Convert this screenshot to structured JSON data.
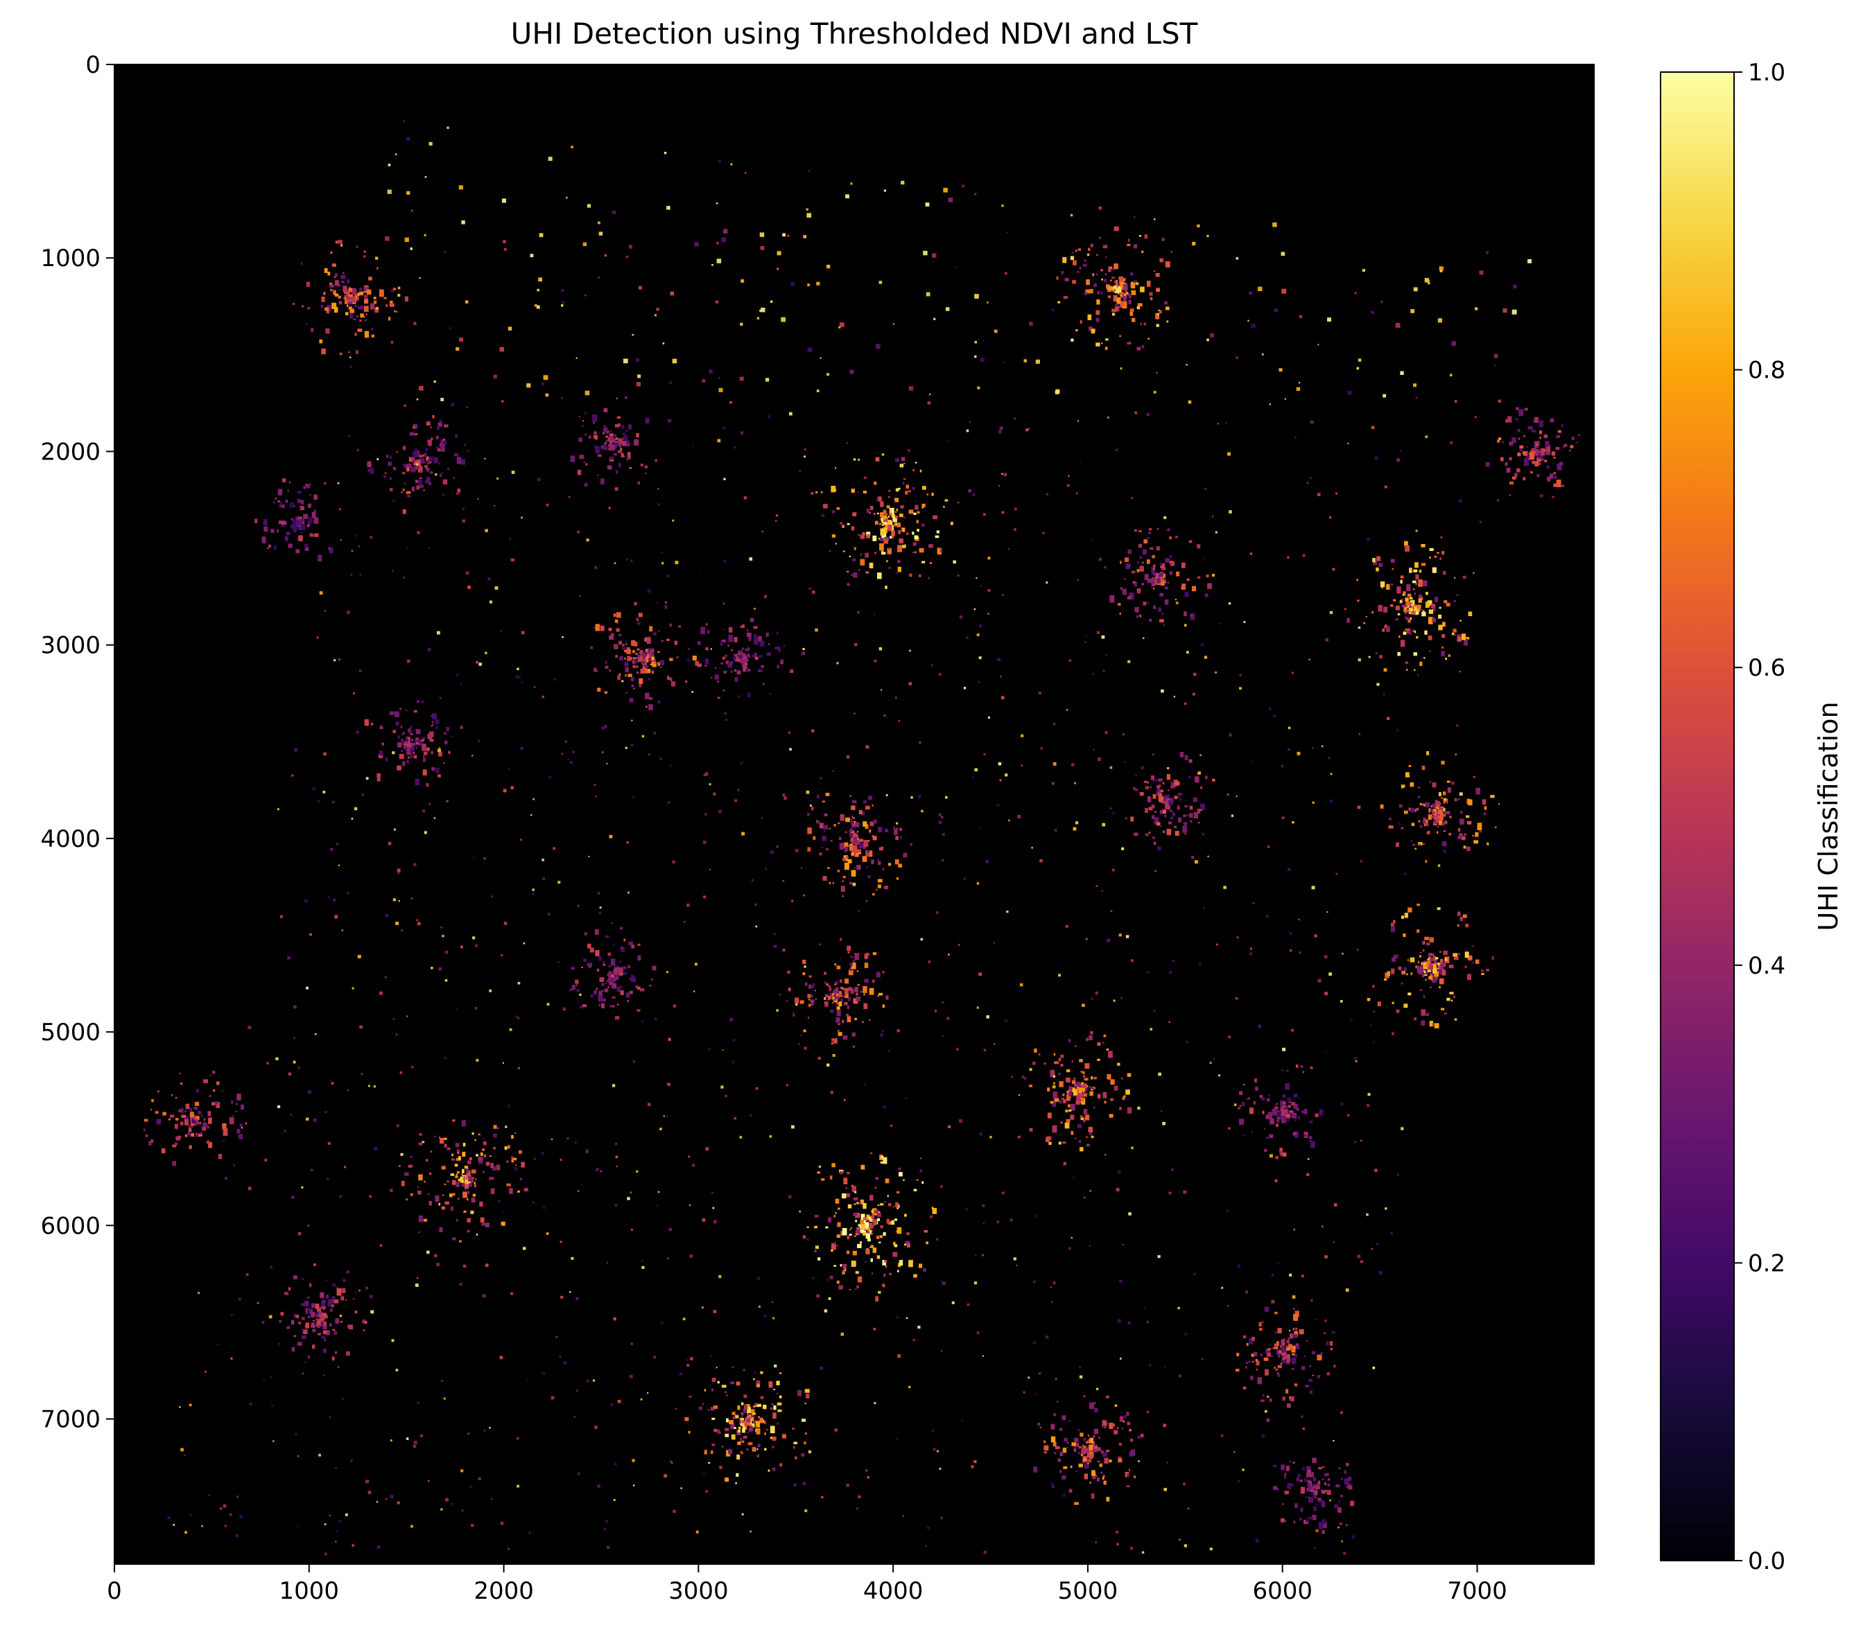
{
  "chart_data": {
    "type": "heatmap",
    "title": "UHI Detection using Thresholded NDVI and LST",
    "xlabel": "",
    "ylabel": "",
    "xlim": [
      0,
      7600
    ],
    "ylim": [
      7750,
      0
    ],
    "x_ticks": [
      0,
      1000,
      2000,
      3000,
      4000,
      5000,
      6000,
      7000
    ],
    "y_ticks": [
      0,
      1000,
      2000,
      3000,
      4000,
      5000,
      6000,
      7000
    ],
    "colormap": "inferno",
    "background_value": 0.0,
    "colorbar": {
      "label": "UHI Classification",
      "range": [
        0.0,
        1.0
      ],
      "ticks": [
        "0.0",
        "0.2",
        "0.4",
        "0.6",
        "0.8",
        "1.0"
      ]
    },
    "grid": false,
    "image_extent_note": "tilted rectangular scene; hot spots clustered in urban cores",
    "hotspot_clusters": [
      {
        "x": 3850,
        "y": 6000,
        "intensity": 1.0
      },
      {
        "x": 3950,
        "y": 2350,
        "intensity": 0.9
      },
      {
        "x": 6650,
        "y": 2800,
        "intensity": 0.85
      },
      {
        "x": 5150,
        "y": 1150,
        "intensity": 0.8
      },
      {
        "x": 3250,
        "y": 7000,
        "intensity": 0.85
      },
      {
        "x": 1800,
        "y": 5750,
        "intensity": 0.8
      },
      {
        "x": 6750,
        "y": 4650,
        "intensity": 0.8
      },
      {
        "x": 6800,
        "y": 3850,
        "intensity": 0.75
      },
      {
        "x": 4950,
        "y": 5300,
        "intensity": 0.75
      },
      {
        "x": 1200,
        "y": 1200,
        "intensity": 0.7
      },
      {
        "x": 3800,
        "y": 4000,
        "intensity": 0.7
      },
      {
        "x": 2700,
        "y": 3050,
        "intensity": 0.65
      },
      {
        "x": 3700,
        "y": 4800,
        "intensity": 0.7
      },
      {
        "x": 5000,
        "y": 7150,
        "intensity": 0.7
      },
      {
        "x": 400,
        "y": 5450,
        "intensity": 0.6
      },
      {
        "x": 5350,
        "y": 2650,
        "intensity": 0.6
      },
      {
        "x": 6000,
        "y": 6650,
        "intensity": 0.6
      },
      {
        "x": 1550,
        "y": 2050,
        "intensity": 0.55
      },
      {
        "x": 5400,
        "y": 3800,
        "intensity": 0.55
      },
      {
        "x": 7300,
        "y": 2000,
        "intensity": 0.55
      },
      {
        "x": 2550,
        "y": 1950,
        "intensity": 0.5
      },
      {
        "x": 1500,
        "y": 3500,
        "intensity": 0.5
      },
      {
        "x": 2550,
        "y": 4700,
        "intensity": 0.5
      },
      {
        "x": 1050,
        "y": 6450,
        "intensity": 0.5
      },
      {
        "x": 6150,
        "y": 7350,
        "intensity": 0.45
      },
      {
        "x": 6000,
        "y": 5400,
        "intensity": 0.5
      },
      {
        "x": 3200,
        "y": 3050,
        "intensity": 0.5
      },
      {
        "x": 950,
        "y": 2350,
        "intensity": 0.45
      }
    ]
  }
}
